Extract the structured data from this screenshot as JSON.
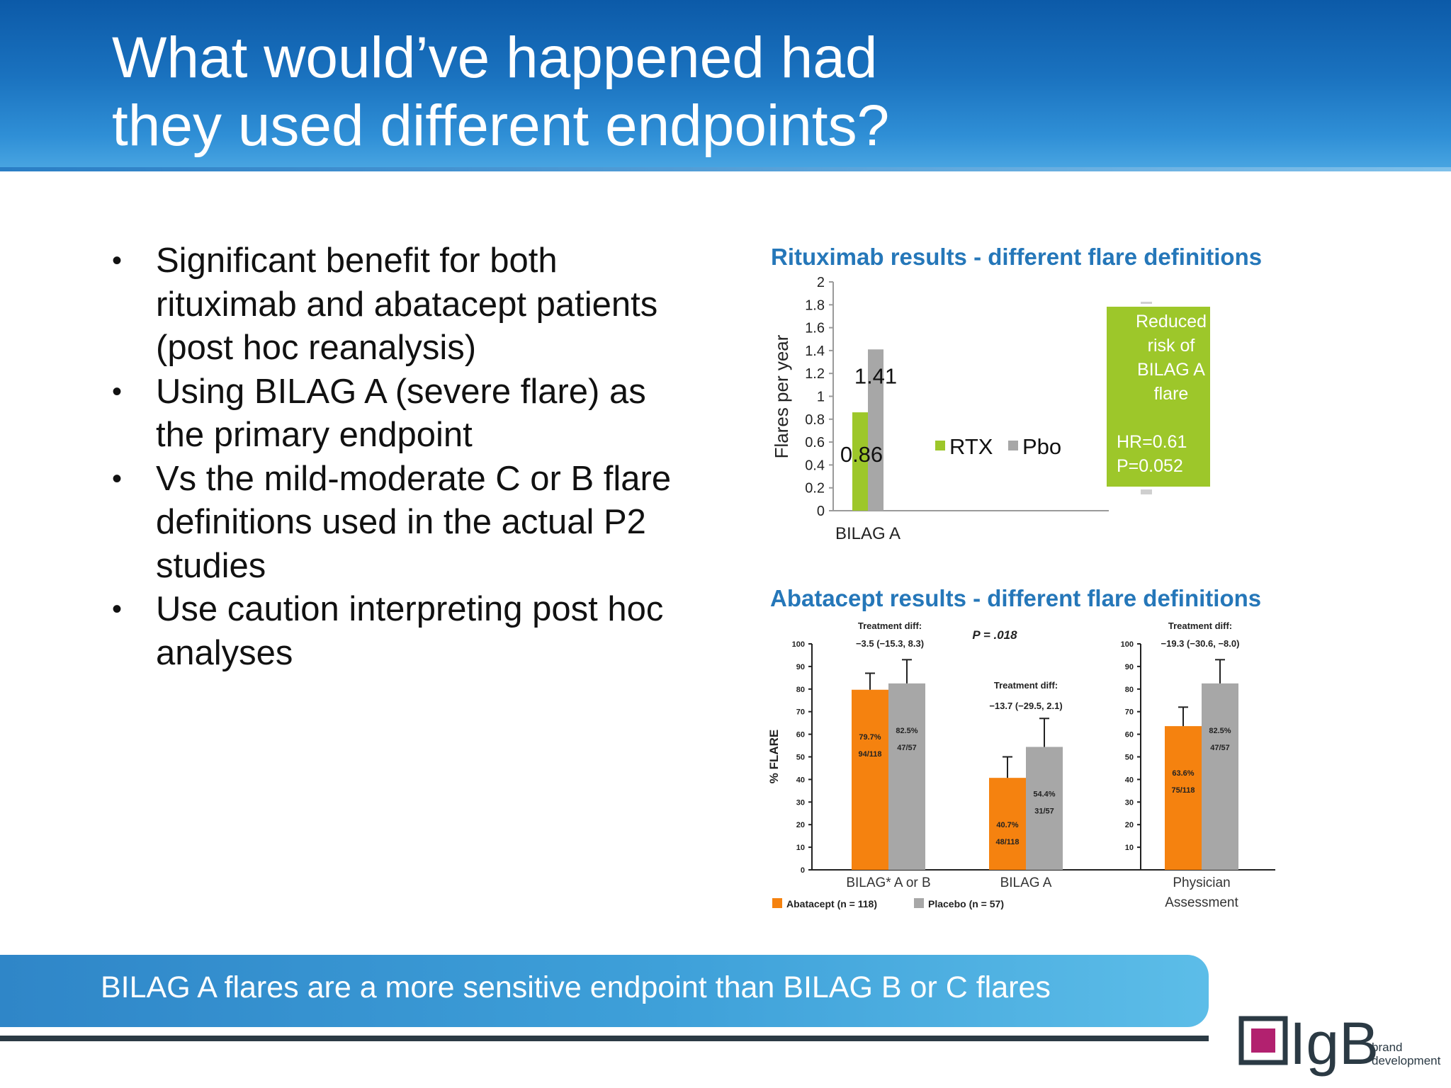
{
  "slide": {
    "title_line1": "What would’ve happened had",
    "title_line2": "they used different endpoints?",
    "bullets": [
      "Significant benefit for both rituximab and abatacept patients (post hoc reanalysis)",
      "Using BILAG A (severe flare) as the primary endpoint",
      "Vs the mild-moderate C or B flare definitions used in the actual P2 studies",
      "Use caution interpreting post hoc analyses"
    ],
    "bullet_marker": "•",
    "banner": "BILAG A flares are a more sensitive endpoint than BILAG B or C flares",
    "logo": {
      "mark": "IgB",
      "sub1": "brand",
      "sub2": "development"
    }
  },
  "chart_data": [
    {
      "type": "bar",
      "title": "Rituximab results - different flare definitions",
      "ylabel": "Flares per year",
      "xlabel": "",
      "ylim": [
        0,
        2
      ],
      "yticks": [
        "0",
        "0.2",
        "0.4",
        "0.6",
        "0.8",
        "1",
        "1.2",
        "1.4",
        "1.6",
        "1.8",
        "2"
      ],
      "categories": [
        "BILAG A"
      ],
      "series": [
        {
          "name": "RTX",
          "values": [
            0.86
          ],
          "color": "#9dc72a"
        },
        {
          "name": "Pbo",
          "values": [
            1.41
          ],
          "color": "#a7a7a7"
        }
      ],
      "data_labels": [
        "0.86",
        "1.41"
      ],
      "legend": "right",
      "annotation": {
        "lines": [
          "Reduced",
          "risk of",
          "BILAG A",
          "flare"
        ],
        "stats": [
          "HR=0.61",
          "P=0.052"
        ],
        "color": "#9dc72a"
      }
    },
    {
      "type": "bar",
      "title": "Abatacept results - different flare definitions",
      "ylabel": "% FLARE",
      "ylim": [
        0,
        100
      ],
      "yticks": [
        "0",
        "10",
        "20",
        "30",
        "40",
        "50",
        "60",
        "70",
        "80",
        "90",
        "100"
      ],
      "yticks_right": [
        "10",
        "20",
        "30",
        "40",
        "50",
        "60",
        "70",
        "80",
        "90",
        "100"
      ],
      "categories": [
        "BILAG* A or B",
        "BILAG A",
        "Physician Assessment"
      ],
      "category_lines": [
        [
          "BILAG* A or B"
        ],
        [
          "BILAG A"
        ],
        [
          "Physician",
          "Assessment"
        ]
      ],
      "series": [
        {
          "name": "Abatacept (n = 118)",
          "values": [
            79.7,
            40.7,
            63.6
          ],
          "err_upper": [
            87,
            50,
            72
          ],
          "color": "#f5820f"
        },
        {
          "name": "Placebo (n = 57)",
          "values": [
            82.5,
            54.4,
            82.5
          ],
          "err_upper": [
            93,
            67,
            93
          ],
          "color": "#a7a7a7"
        }
      ],
      "bar_labels": [
        [
          [
            "79.7%",
            "94/118"
          ],
          [
            "40.7%",
            "48/118"
          ],
          [
            "63.6%",
            "75/118"
          ]
        ],
        [
          [
            "82.5%",
            "47/57"
          ],
          [
            "54.4%",
            "31/57"
          ],
          [
            "82.5%",
            "47/57"
          ]
        ]
      ],
      "annotations": [
        {
          "label": "Treatment diff:",
          "value": "−3.5 (−15.3, 8.3)"
        },
        {
          "label": "P = .018"
        },
        {
          "label": "Treatment diff:",
          "value": "−13.7 (−29.5, 2.1)"
        },
        {
          "label": "Treatment diff:",
          "value": "−19.3 (−30.6, −8.0)"
        }
      ],
      "legend": "bottom"
    }
  ]
}
